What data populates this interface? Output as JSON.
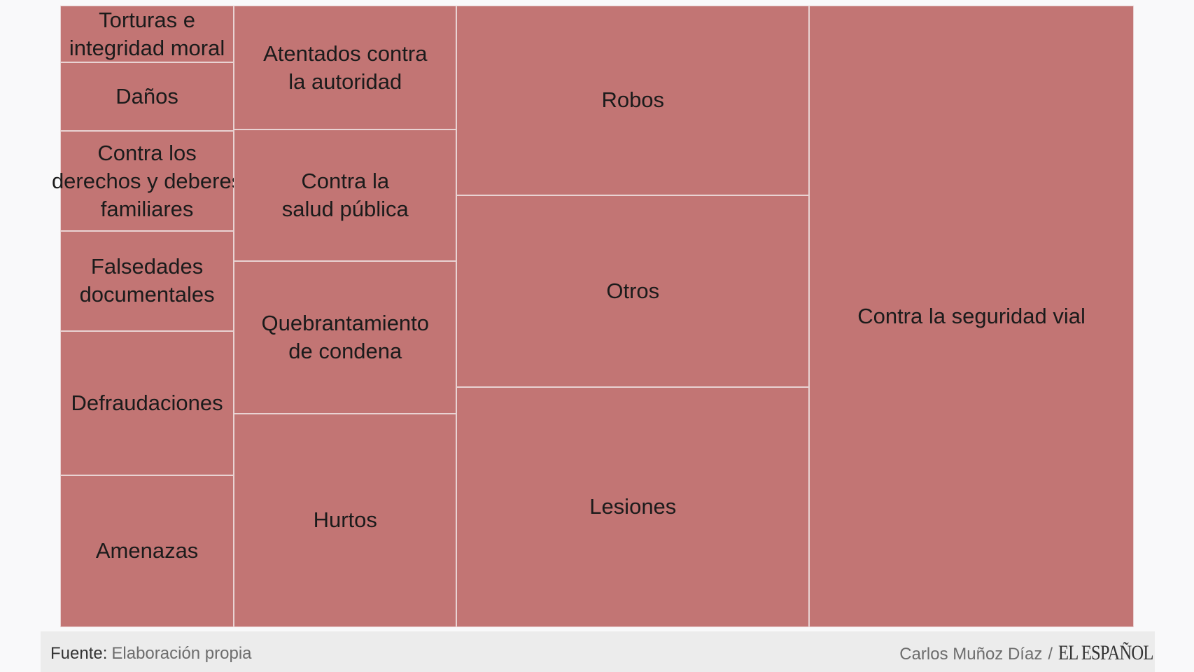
{
  "chart_data": {
    "type": "treemap",
    "title": "",
    "color": "#c27574",
    "items": [
      {
        "label": "Contra la seguridad vial",
        "lines": [
          "Contra la seguridad vial"
        ],
        "value": 1000,
        "column": 4
      },
      {
        "label": "Robos",
        "lines": [
          "Robos"
        ],
        "value": 331,
        "column": 3
      },
      {
        "label": "Otros",
        "lines": [
          "Otros"
        ],
        "value": 335,
        "column": 3
      },
      {
        "label": "Lesiones",
        "lines": [
          "Lesiones"
        ],
        "value": 420,
        "column": 3
      },
      {
        "label": "Atentados contra la autoridad",
        "lines": [
          "Atentados contra",
          "la autoridad"
        ],
        "value": 137,
        "column": 2
      },
      {
        "label": "Contra la salud pública",
        "lines": [
          "Contra la",
          "salud pública"
        ],
        "value": 145,
        "column": 2
      },
      {
        "label": "Quebrantamiento de condena",
        "lines": [
          "Quebrantamiento",
          "de condena"
        ],
        "value": 168,
        "column": 2
      },
      {
        "label": "Hurtos",
        "lines": [
          "Hurtos"
        ],
        "value": 236,
        "column": 2
      },
      {
        "label": "Torturas e integridad moral",
        "lines": [
          "Torturas e",
          "integridad moral"
        ],
        "value": 49,
        "column": 1
      },
      {
        "label": "Daños",
        "lines": [
          "Daños"
        ],
        "value": 59,
        "column": 1
      },
      {
        "label": "Contra los derechos y deberes familiares",
        "lines": [
          "Contra los",
          "derechos y deberes",
          "familiares"
        ],
        "value": 86,
        "column": 1
      },
      {
        "label": "Falsedades documentales",
        "lines": [
          "Falsedades",
          "documentales"
        ],
        "value": 86,
        "column": 1
      },
      {
        "label": "Defraudaciones",
        "lines": [
          "Defraudaciones"
        ],
        "value": 124,
        "column": 1
      },
      {
        "label": "Amenazas",
        "lines": [
          "Amenazas"
        ],
        "value": 131,
        "column": 1
      }
    ]
  },
  "footer": {
    "source_label": "Fuente:",
    "source_value": "Elaboración propia",
    "author": "Carlos Muñoz Díaz",
    "separator": "/",
    "brand": "EL ESPAÑOL"
  }
}
